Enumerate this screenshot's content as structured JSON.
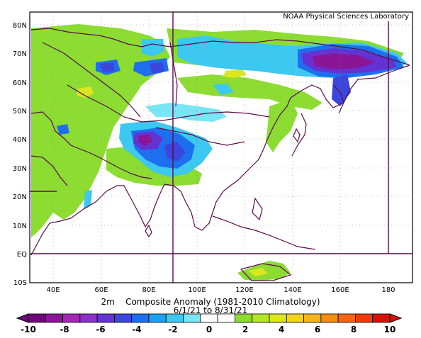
{
  "credit": "NOAA Physical Sciences Laboratory",
  "caption": {
    "variable": "2m",
    "title": "Composite Anomaly (1981-2010 Climatology)",
    "date_range": "6/1/21  to 8/31/21"
  },
  "axes": {
    "lat_labels": [
      "80N",
      "70N",
      "60N",
      "50N",
      "40N",
      "30N",
      "20N",
      "10N",
      "EQ",
      "10S"
    ],
    "lon_labels": [
      "40E",
      "60E",
      "80E",
      "100E",
      "120E",
      "140E",
      "160E",
      "180"
    ]
  },
  "colorbar": {
    "labels": [
      "-10",
      "-8",
      "-6",
      "-4",
      "-2",
      "0",
      "2",
      "4",
      "6",
      "8",
      "10"
    ],
    "colors": [
      "#6e0a78",
      "#8c1496",
      "#a528b4",
      "#8c32c8",
      "#6432d2",
      "#3c46dc",
      "#1e6ef0",
      "#1ea0f0",
      "#3cc8f0",
      "#78e6f5",
      "#ffffff",
      "#ffffff",
      "#8cdc32",
      "#b4e628",
      "#dce61e",
      "#f5d21e",
      "#f5b41e",
      "#f58c14",
      "#f5640f",
      "#eb3c0a",
      "#d2140a"
    ]
  },
  "map": {
    "projection": "Equirectangular",
    "lon_range": [
      30,
      190
    ],
    "lat_range": [
      -10,
      85
    ],
    "gridlines": "dotted",
    "field": "2m air temperature anomaly"
  }
}
